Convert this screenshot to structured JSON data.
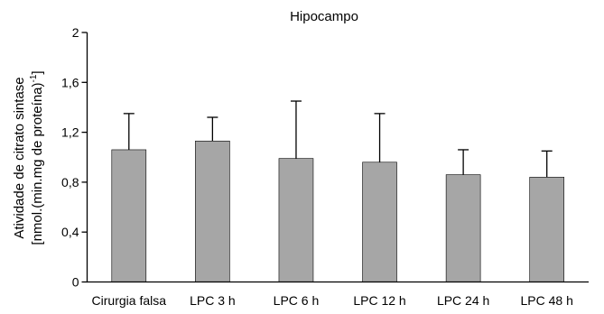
{
  "chart_data": {
    "type": "bar",
    "title": "Hipocampo",
    "ylabel_line1": "Atividade de citrato sintase",
    "ylabel_line2_main": "[nmol.(min.mg de proteína)",
    "ylabel_line2_sup": "-1",
    "ylabel_line2_end": "]",
    "xlabel": "",
    "categories": [
      "Cirurgia falsa",
      "LPC 3 h",
      "LPC 6 h",
      "LPC 12 h",
      "LPC 24 h",
      "LPC 48 h"
    ],
    "values": [
      1.06,
      1.13,
      0.99,
      0.96,
      0.86,
      0.84
    ],
    "error_upper": [
      0.29,
      0.19,
      0.46,
      0.39,
      0.2,
      0.21
    ],
    "ylim": [
      0,
      2
    ],
    "yticks": [
      "0",
      "0,4",
      "0,8",
      "1,2",
      "1,6",
      "2"
    ],
    "ytick_values": [
      0,
      0.4,
      0.8,
      1.2,
      1.6,
      2
    ],
    "bar_color": "#a6a6a6",
    "bar_edge_color": "#000000",
    "grid": false,
    "legend": "none"
  }
}
